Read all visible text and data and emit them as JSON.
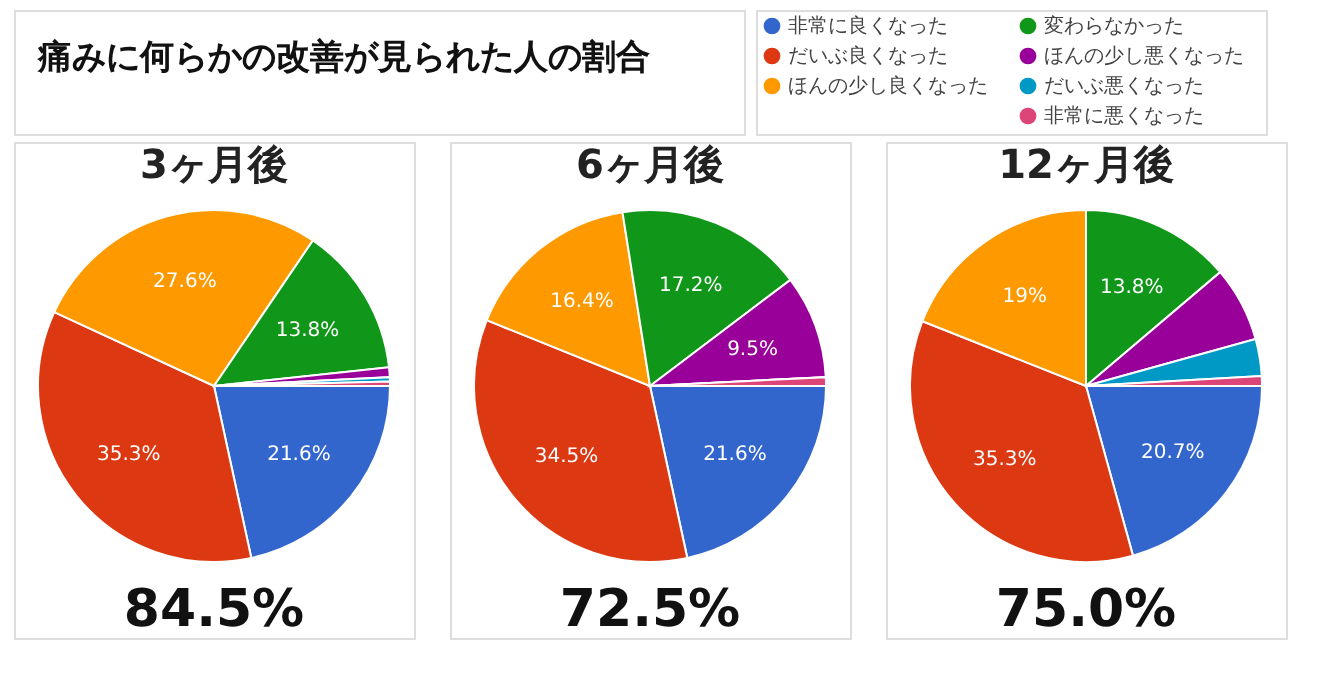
{
  "chart_data": [
    {
      "type": "pie",
      "title": "痛みに何らかの改善が見られた人の割合",
      "subtitle": "3ヶ月後",
      "legend": "top right",
      "categories": [
        "非常に良くなった",
        "だいぶ良くなった",
        "ほんの少し良くなった",
        "変わらなかった",
        "ほんの少し悪くなった",
        "だいぶ悪くなった",
        "非常に悪くなった"
      ],
      "values": [
        21.6,
        35.3,
        27.6,
        13.8,
        0.9,
        0.4,
        0.4
      ],
      "colors": [
        "#3366cc",
        "#dc3912",
        "#ff9900",
        "#109618",
        "#990099",
        "#0099c6",
        "#dd4477"
      ],
      "value_labels": [
        "21.6%",
        "35.3%",
        "27.6%",
        "13.8%",
        null,
        null,
        null
      ],
      "annotations": [
        "84.5%"
      ]
    },
    {
      "type": "pie",
      "subtitle": "6ヶ月後",
      "categories": [
        null,
        null,
        null,
        null,
        null,
        null,
        null
      ],
      "values": [
        21.6,
        34.5,
        16.4,
        17.2,
        9.5,
        0.0,
        0.8
      ],
      "colors": [
        "#3366cc",
        "#dc3912",
        "#ff9900",
        "#109618",
        "#990099",
        "#0099c6",
        "#dd4477"
      ],
      "value_labels": [
        "21.6%",
        "34.5%",
        "16.4%",
        "17.2%",
        "9.5%",
        null,
        null
      ],
      "annotations": [
        "72.5%"
      ]
    },
    {
      "type": "pie",
      "subtitle": "12ヶ月後",
      "categories": [
        null,
        null,
        null,
        null,
        null,
        null,
        null
      ],
      "values": [
        20.7,
        35.3,
        19,
        13.8,
        6.9,
        3.4,
        0.9
      ],
      "colors": [
        "#3366cc",
        "#dc3912",
        "#ff9900",
        "#109618",
        "#990099",
        "#0099c6",
        "#dd4477"
      ],
      "value_labels": [
        "20.7%",
        "35.3%",
        "19%",
        "13.8%",
        null,
        null,
        null
      ],
      "annotations": [
        "75.0%"
      ]
    }
  ]
}
